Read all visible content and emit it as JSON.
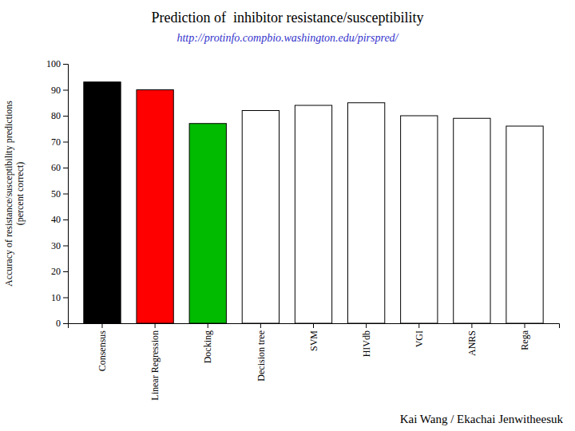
{
  "chart_data": {
    "type": "bar",
    "title": "Prediction of  inhibitor resistance/susceptibility",
    "subtitle": "http://protinfo.compbio.washington.edu/pirspred/",
    "annotations": [
      "Kai Wang / Ekachai Jenwitheesuk"
    ],
    "ylabel": "Accuracy of resistance/susceptibility predictions\n(percent correct)",
    "categories": [
      "Consensus",
      "Linear Regression",
      "Docking",
      "Decision tree",
      "SVM",
      "HIVdb",
      "VGI",
      "ANRS",
      "Rega"
    ],
    "values": [
      93,
      90,
      77,
      82,
      84,
      85,
      80,
      79,
      76
    ],
    "colors": [
      "#000000",
      "#ff0000",
      "#00bb00",
      "#ffffff",
      "#ffffff",
      "#ffffff",
      "#ffffff",
      "#ffffff",
      "#ffffff"
    ],
    "ylim": [
      0,
      100
    ],
    "yticks": [
      0,
      10,
      20,
      30,
      40,
      50,
      60,
      70,
      80,
      90,
      100
    ],
    "grid": false
  }
}
